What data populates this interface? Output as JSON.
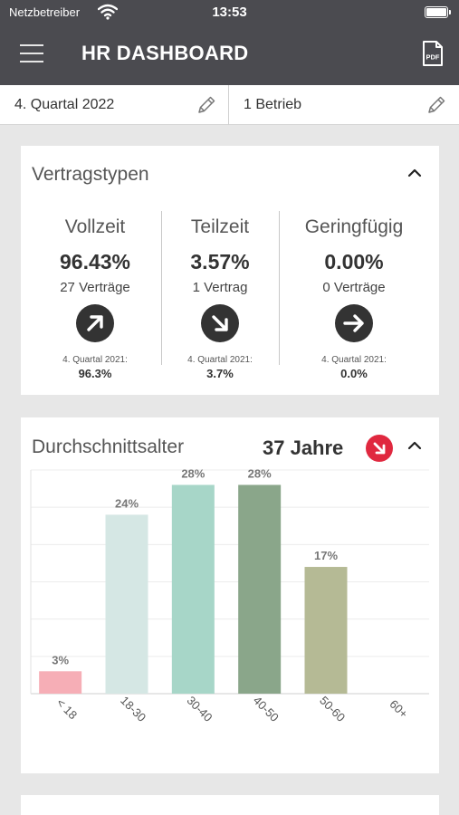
{
  "status_bar": {
    "carrier": "Netzbetreiber",
    "time": "13:53"
  },
  "header": {
    "title": "HR DASHBOARD",
    "pdf_label": "PDF"
  },
  "filters": {
    "period": "4. Quartal 2022",
    "location": "1 Betrieb"
  },
  "contract_types": {
    "title": "Vertragstypen",
    "items": [
      {
        "name": "Vollzeit",
        "percent": "96.43%",
        "count": "27  Verträge",
        "trend": "up-right",
        "prev_label": "4. Quartal 2021:",
        "prev_value": "96.3%"
      },
      {
        "name": "Teilzeit",
        "percent": "3.57%",
        "count": "1  Vertrag",
        "trend": "down-right",
        "prev_label": "4. Quartal 2021:",
        "prev_value": "3.7%"
      },
      {
        "name": "Geringfügig",
        "percent": "0.00%",
        "count": "0  Verträge",
        "trend": "right",
        "prev_label": "4. Quartal 2021:",
        "prev_value": "0.0%"
      }
    ]
  },
  "average_age": {
    "title": "Durchschnittsalter",
    "value": "37 Jahre",
    "trend": "down-right",
    "badge_color": "#e0283f"
  },
  "chart_data": {
    "type": "bar",
    "categories": [
      "< 18",
      "18-30",
      "30-40",
      "40-50",
      "50-60",
      "60+"
    ],
    "values": [
      3,
      24,
      28,
      28,
      17,
      0
    ],
    "labels": [
      "3%",
      "24%",
      "28%",
      "28%",
      "17%",
      ""
    ],
    "colors": [
      "#f6aeb6",
      "#d5e7e4",
      "#a7d6c8",
      "#8aa68a",
      "#b5ba95",
      "#cccccc"
    ],
    "ylim": [
      0,
      30
    ],
    "grid": true
  },
  "colors": {
    "header_bg": "#4b4b50",
    "arrow_bg": "#333333"
  }
}
